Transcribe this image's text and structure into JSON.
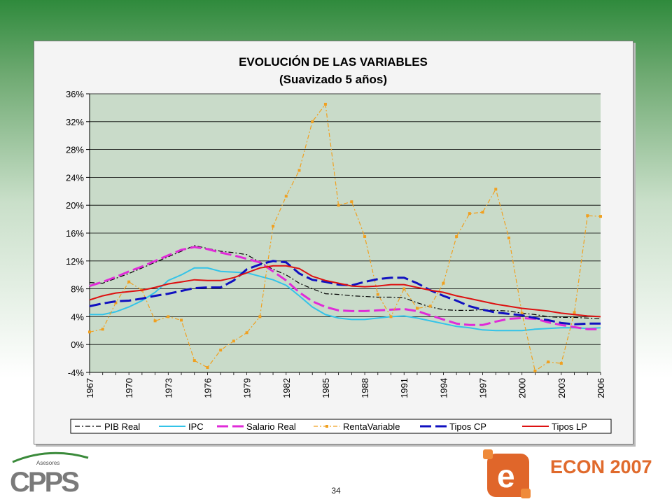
{
  "chart_data": {
    "type": "line",
    "title": "EVOLUCIÓN DE LAS VARIABLES",
    "subtitle": "(Suavizado 5 años)",
    "x": [
      1967,
      1968,
      1969,
      1970,
      1971,
      1972,
      1973,
      1974,
      1975,
      1976,
      1977,
      1978,
      1979,
      1980,
      1981,
      1982,
      1983,
      1984,
      1985,
      1986,
      1987,
      1988,
      1989,
      1990,
      1991,
      1992,
      1993,
      1994,
      1995,
      1996,
      1997,
      1998,
      1999,
      2000,
      2001,
      2002,
      2003,
      2004,
      2005,
      2006
    ],
    "x_tick_labels": [
      "1967",
      "1970",
      "1973",
      "1976",
      "1979",
      "1982",
      "1985",
      "1988",
      "1991",
      "1994",
      "1997",
      "2000",
      "2003",
      "2006"
    ],
    "ylim": [
      -4,
      36
    ],
    "y_tick_labels": [
      "-4%",
      "0%",
      "4%",
      "8%",
      "12%",
      "16%",
      "20%",
      "24%",
      "28%",
      "32%",
      "36%"
    ],
    "grid": "horizontal",
    "legend_position": "bottom",
    "series": [
      {
        "name": "PIB Real",
        "color": "#000000",
        "style": "dashdot",
        "values": [
          8.9,
          8.8,
          9.5,
          10.2,
          11.0,
          11.8,
          12.6,
          13.4,
          14.2,
          13.8,
          13.4,
          13.2,
          12.9,
          11.8,
          10.8,
          10.0,
          8.8,
          8.0,
          7.3,
          7.2,
          7.0,
          6.9,
          6.8,
          6.8,
          6.7,
          6.0,
          5.4,
          5.0,
          4.9,
          4.9,
          5.0,
          4.9,
          4.8,
          4.5,
          4.3,
          4.0,
          3.9,
          3.9,
          3.8,
          3.7
        ]
      },
      {
        "name": "IPC",
        "color": "#33c3e8",
        "style": "solid",
        "values": [
          4.3,
          4.3,
          4.7,
          5.4,
          6.3,
          7.5,
          9.2,
          10.0,
          11.0,
          11.0,
          10.5,
          10.4,
          10.3,
          9.8,
          9.3,
          8.5,
          7.0,
          5.4,
          4.3,
          3.8,
          3.6,
          3.6,
          3.8,
          4.0,
          4.1,
          3.8,
          3.4,
          3.0,
          2.6,
          2.4,
          2.1,
          2.0,
          2.0,
          2.0,
          2.2,
          2.3,
          2.4,
          2.4,
          2.3,
          2.4
        ]
      },
      {
        "name": "Salario Real",
        "color": "#e02bd8",
        "style": "dash",
        "values": [
          8.4,
          9.0,
          9.7,
          10.5,
          11.2,
          12.0,
          12.8,
          13.6,
          14.0,
          13.7,
          13.2,
          12.8,
          12.3,
          11.8,
          10.5,
          9.2,
          7.5,
          6.2,
          5.4,
          4.9,
          4.8,
          4.8,
          4.9,
          5.0,
          5.1,
          4.8,
          4.2,
          3.6,
          3.0,
          2.8,
          2.8,
          3.3,
          3.7,
          3.8,
          3.7,
          3.2,
          2.8,
          2.5,
          2.2,
          2.2
        ]
      },
      {
        "name": "RentaVariable",
        "color": "#f0a020",
        "style": "dashdot-marker",
        "values": [
          1.8,
          2.2,
          6.0,
          9.0,
          7.8,
          3.4,
          4.0,
          3.5,
          -2.3,
          -3.3,
          -0.8,
          0.5,
          1.7,
          4.0,
          17.0,
          21.3,
          25.0,
          32.0,
          34.5,
          20.0,
          20.5,
          15.5,
          7.2,
          4.0,
          8.0,
          5.2,
          5.5,
          8.8,
          15.5,
          18.8,
          19.0,
          22.3,
          15.3,
          4.5,
          -3.8,
          -2.5,
          -2.7,
          4.6,
          18.5,
          18.4
        ]
      },
      {
        "name": "Tipos CP",
        "color": "#1010c0",
        "style": "dash",
        "values": [
          5.5,
          5.9,
          6.2,
          6.3,
          6.6,
          7.0,
          7.3,
          7.7,
          8.1,
          8.2,
          8.2,
          9.2,
          10.8,
          11.5,
          12.0,
          11.8,
          10.2,
          9.3,
          9.0,
          8.6,
          8.5,
          9.0,
          9.4,
          9.6,
          9.6,
          8.8,
          7.8,
          7.0,
          6.3,
          5.5,
          5.0,
          4.6,
          4.4,
          4.2,
          3.8,
          3.5,
          3.1,
          2.9,
          3.0,
          3.0
        ]
      },
      {
        "name": "Tipos LP",
        "color": "#dd1111",
        "style": "solid",
        "values": [
          6.4,
          7.0,
          7.4,
          7.6,
          7.8,
          8.2,
          8.7,
          9.0,
          9.3,
          9.2,
          9.2,
          9.6,
          10.3,
          11.0,
          11.3,
          11.3,
          10.9,
          9.8,
          9.2,
          8.8,
          8.4,
          8.3,
          8.4,
          8.6,
          8.6,
          8.2,
          7.8,
          7.5,
          7.0,
          6.6,
          6.2,
          5.8,
          5.5,
          5.2,
          5.0,
          4.8,
          4.5,
          4.3,
          4.1,
          4.0
        ]
      }
    ]
  },
  "footer": {
    "page_number": "34",
    "left_logo_small": "Asesores",
    "left_logo_text": "CPPS",
    "right_logo_text": "ECON 2007",
    "right_logo_letter": "e"
  }
}
